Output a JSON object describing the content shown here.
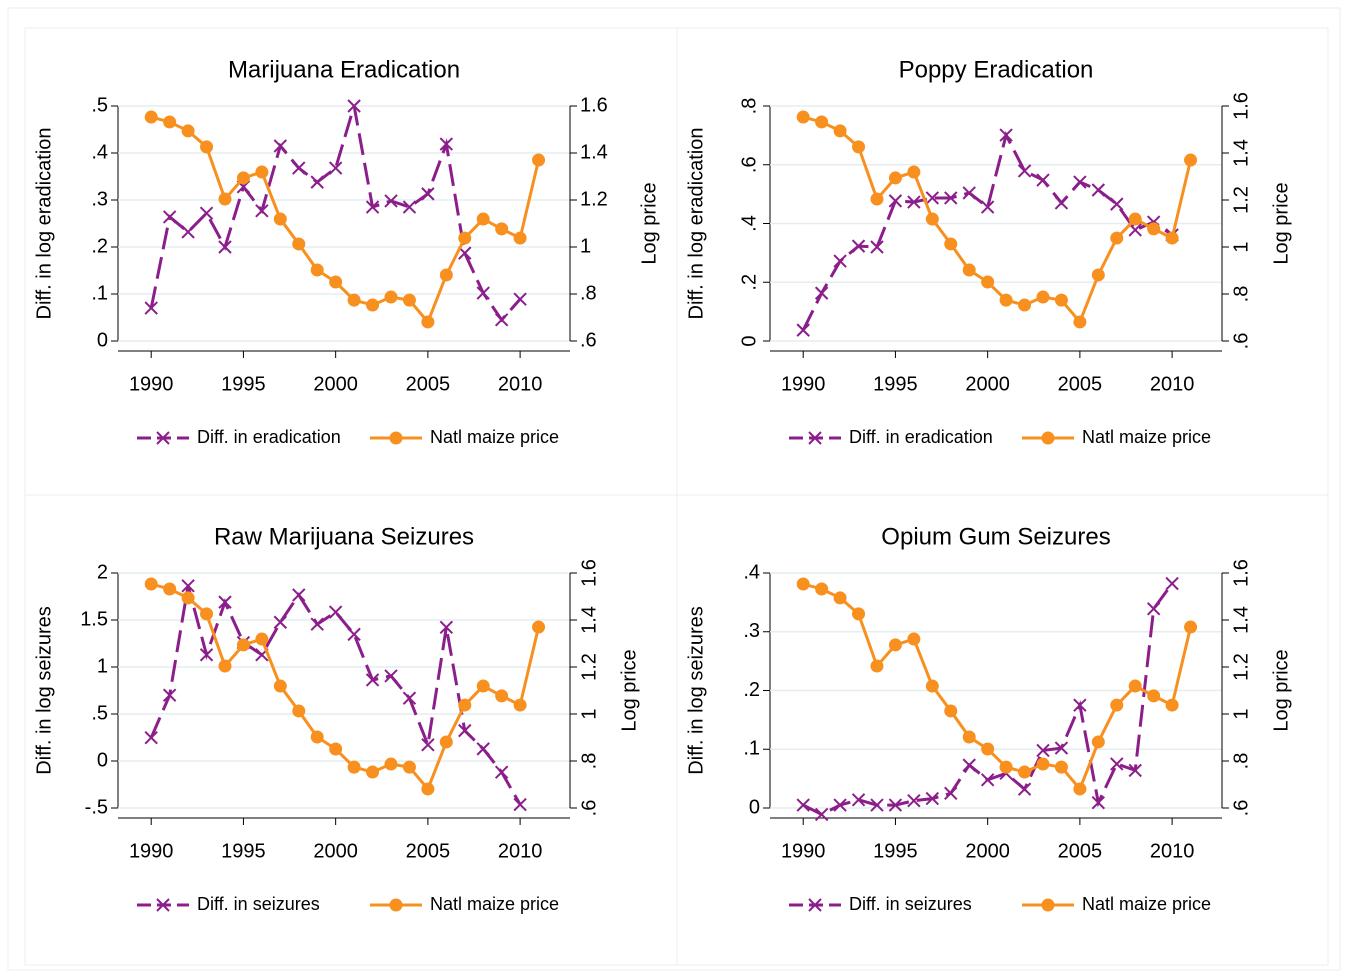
{
  "chart_data": [
    {
      "type": "line",
      "title": "Marijuana Eradication",
      "ylabel": "Diff. in log eradication",
      "y2label": "Log price",
      "x": [
        1990,
        1991,
        1992,
        1993,
        1994,
        1995,
        1996,
        1997,
        1998,
        1999,
        2000,
        2001,
        2002,
        2003,
        2004,
        2005,
        2006,
        2007,
        2008,
        2009,
        2010,
        2011
      ],
      "series": [
        {
          "name": "Diff. in eradication",
          "color": "#8b1e8b",
          "values": [
            0.07,
            0.264,
            0.232,
            0.272,
            0.2,
            0.328,
            0.277,
            0.415,
            0.368,
            0.338,
            0.368,
            0.5,
            0.285,
            0.298,
            0.285,
            0.313,
            0.419,
            0.187,
            0.102,
            0.045,
            0.089,
            null
          ]
        },
        {
          "name": "Natl maize price",
          "color": "#f7901e",
          "axis": "y2",
          "values": [
            1.553,
            1.532,
            1.494,
            1.426,
            1.204,
            1.294,
            1.319,
            1.119,
            1.013,
            0.902,
            0.851,
            0.774,
            0.753,
            0.787,
            0.774,
            0.681,
            0.881,
            1.038,
            1.119,
            1.077,
            1.038,
            1.37
          ]
        }
      ],
      "xlim": [
        1988.2,
        2012
      ],
      "xticks": [
        1990,
        1995,
        2000,
        2005,
        2010
      ],
      "ylim": [
        0,
        0.5
      ],
      "yticks": [
        0,
        {
          "value": 0.1,
          "label": ".1"
        },
        {
          "value": 0.2,
          "label": ".2"
        },
        {
          "value": 0.3,
          "label": ".3"
        },
        {
          "value": 0.4,
          "label": ".4"
        },
        {
          "value": 0.5,
          "label": ".5"
        }
      ],
      "y2lim": [
        0.6,
        1.6
      ],
      "y2ticks": [
        {
          "value": 0.6,
          "label": ".6"
        },
        {
          "value": 0.8,
          "label": ".8"
        },
        1,
        1.2,
        1.4,
        1.6
      ],
      "grid": true
    },
    {
      "type": "line",
      "title": "Poppy Eradication",
      "ylabel": "Diff. in log eradication",
      "y2label": "Log price",
      "x": [
        1990,
        1991,
        1992,
        1993,
        1994,
        1995,
        1996,
        1997,
        1998,
        1999,
        2000,
        2001,
        2002,
        2003,
        2004,
        2005,
        2006,
        2007,
        2008,
        2009,
        2010,
        2011
      ],
      "series": [
        {
          "name": "Diff. in eradication",
          "color": "#8b1e8b",
          "values": [
            0.037,
            0.163,
            0.272,
            0.323,
            0.32,
            0.477,
            0.473,
            0.487,
            0.487,
            0.504,
            0.456,
            0.701,
            0.579,
            0.548,
            0.47,
            0.541,
            0.514,
            0.466,
            0.378,
            0.405,
            0.361,
            null
          ]
        },
        {
          "name": "Natl maize price",
          "color": "#f7901e",
          "axis": "y2",
          "values": [
            1.553,
            1.532,
            1.494,
            1.426,
            1.204,
            1.294,
            1.319,
            1.119,
            1.013,
            0.902,
            0.851,
            0.774,
            0.753,
            0.787,
            0.774,
            0.681,
            0.881,
            1.038,
            1.119,
            1.077,
            1.038,
            1.37
          ]
        }
      ],
      "xlim": [
        1988.2,
        2012
      ],
      "xticks": [
        1990,
        1995,
        2000,
        2005,
        2010
      ],
      "ylim": [
        0,
        0.8
      ],
      "yticks": [
        0,
        {
          "value": 0.2,
          "label": ".2"
        },
        {
          "value": 0.4,
          "label": ".4"
        },
        {
          "value": 0.6,
          "label": ".6"
        },
        {
          "value": 0.8,
          "label": ".8"
        }
      ],
      "y2lim": [
        0.6,
        1.6
      ],
      "y2ticks": [
        {
          "value": 0.6,
          "label": ".6"
        },
        {
          "value": 0.8,
          "label": ".8"
        },
        1,
        1.2,
        1.4,
        1.6
      ],
      "grid": true
    },
    {
      "type": "line",
      "title": "Raw Marijuana Seizures",
      "ylabel": "Diff. in log seizures",
      "y2label": "Log price",
      "x": [
        1990,
        1991,
        1992,
        1993,
        1994,
        1995,
        1996,
        1997,
        1998,
        1999,
        2000,
        2001,
        2002,
        2003,
        2004,
        2005,
        2006,
        2007,
        2008,
        2009,
        2010,
        2011
      ],
      "series": [
        {
          "name": "Diff. in seizures",
          "color": "#8b1e8b",
          "values": [
            0.248,
            0.7,
            1.864,
            1.13,
            1.69,
            1.26,
            1.13,
            1.476,
            1.767,
            1.455,
            1.584,
            1.347,
            0.862,
            0.905,
            0.668,
            0.172,
            1.422,
            0.323,
            0.129,
            -0.119,
            -0.463,
            null
          ]
        },
        {
          "name": "Natl maize price",
          "color": "#f7901e",
          "axis": "y2",
          "values": [
            1.553,
            1.532,
            1.494,
            1.426,
            1.204,
            1.294,
            1.319,
            1.119,
            1.013,
            0.902,
            0.851,
            0.774,
            0.753,
            0.787,
            0.774,
            0.681,
            0.881,
            1.038,
            1.119,
            1.077,
            1.038,
            1.37
          ]
        }
      ],
      "xlim": [
        1988.2,
        2012
      ],
      "xticks": [
        1990,
        1995,
        2000,
        2005,
        2010
      ],
      "ylim": [
        -0.5,
        2
      ],
      "yticks": [
        {
          "value": -0.5,
          "label": "-.5"
        },
        0,
        {
          "value": 0.5,
          "label": ".5"
        },
        1,
        1.5,
        2
      ],
      "y2lim": [
        0.6,
        1.6
      ],
      "y2ticks": [
        {
          "value": 0.6,
          "label": ".6"
        },
        {
          "value": 0.8,
          "label": ".8"
        },
        1,
        1.2,
        1.4,
        1.6
      ],
      "grid": true
    },
    {
      "type": "line",
      "title": "Opium Gum Seizures",
      "ylabel": "Diff. in log seizures",
      "y2label": "Log price",
      "x": [
        1990,
        1991,
        1992,
        1993,
        1994,
        1995,
        1996,
        1997,
        1998,
        1999,
        2000,
        2001,
        2002,
        2003,
        2004,
        2005,
        2006,
        2007,
        2008,
        2009,
        2010,
        2011
      ],
      "series": [
        {
          "name": "Diff. in seizures",
          "color": "#8b1e8b",
          "values": [
            0.005,
            -0.011,
            0.005,
            0.014,
            0.005,
            0.005,
            0.0125,
            0.016,
            0.025,
            0.073,
            0.048,
            0.059,
            0.032,
            0.098,
            0.102,
            0.175,
            0.009,
            0.075,
            0.064,
            0.339,
            0.382,
            null
          ]
        },
        {
          "name": "Natl maize price",
          "color": "#f7901e",
          "axis": "y2",
          "values": [
            1.553,
            1.532,
            1.494,
            1.426,
            1.204,
            1.294,
            1.319,
            1.119,
            1.013,
            0.902,
            0.851,
            0.774,
            0.753,
            0.787,
            0.774,
            0.681,
            0.881,
            1.038,
            1.119,
            1.077,
            1.038,
            1.37
          ]
        }
      ],
      "xlim": [
        1988.2,
        2012
      ],
      "xticks": [
        1990,
        1995,
        2000,
        2005,
        2010
      ],
      "ylim": [
        0,
        0.4
      ],
      "yticks": [
        0,
        {
          "value": 0.1,
          "label": ".1"
        },
        {
          "value": 0.2,
          "label": ".2"
        },
        {
          "value": 0.3,
          "label": ".3"
        },
        {
          "value": 0.4,
          "label": ".4"
        }
      ],
      "y2lim": [
        0.6,
        1.6
      ],
      "y2ticks": [
        {
          "value": 0.6,
          "label": ".6"
        },
        {
          "value": 0.8,
          "label": ".8"
        },
        1,
        1.2,
        1.4,
        1.6
      ],
      "grid": true
    }
  ]
}
